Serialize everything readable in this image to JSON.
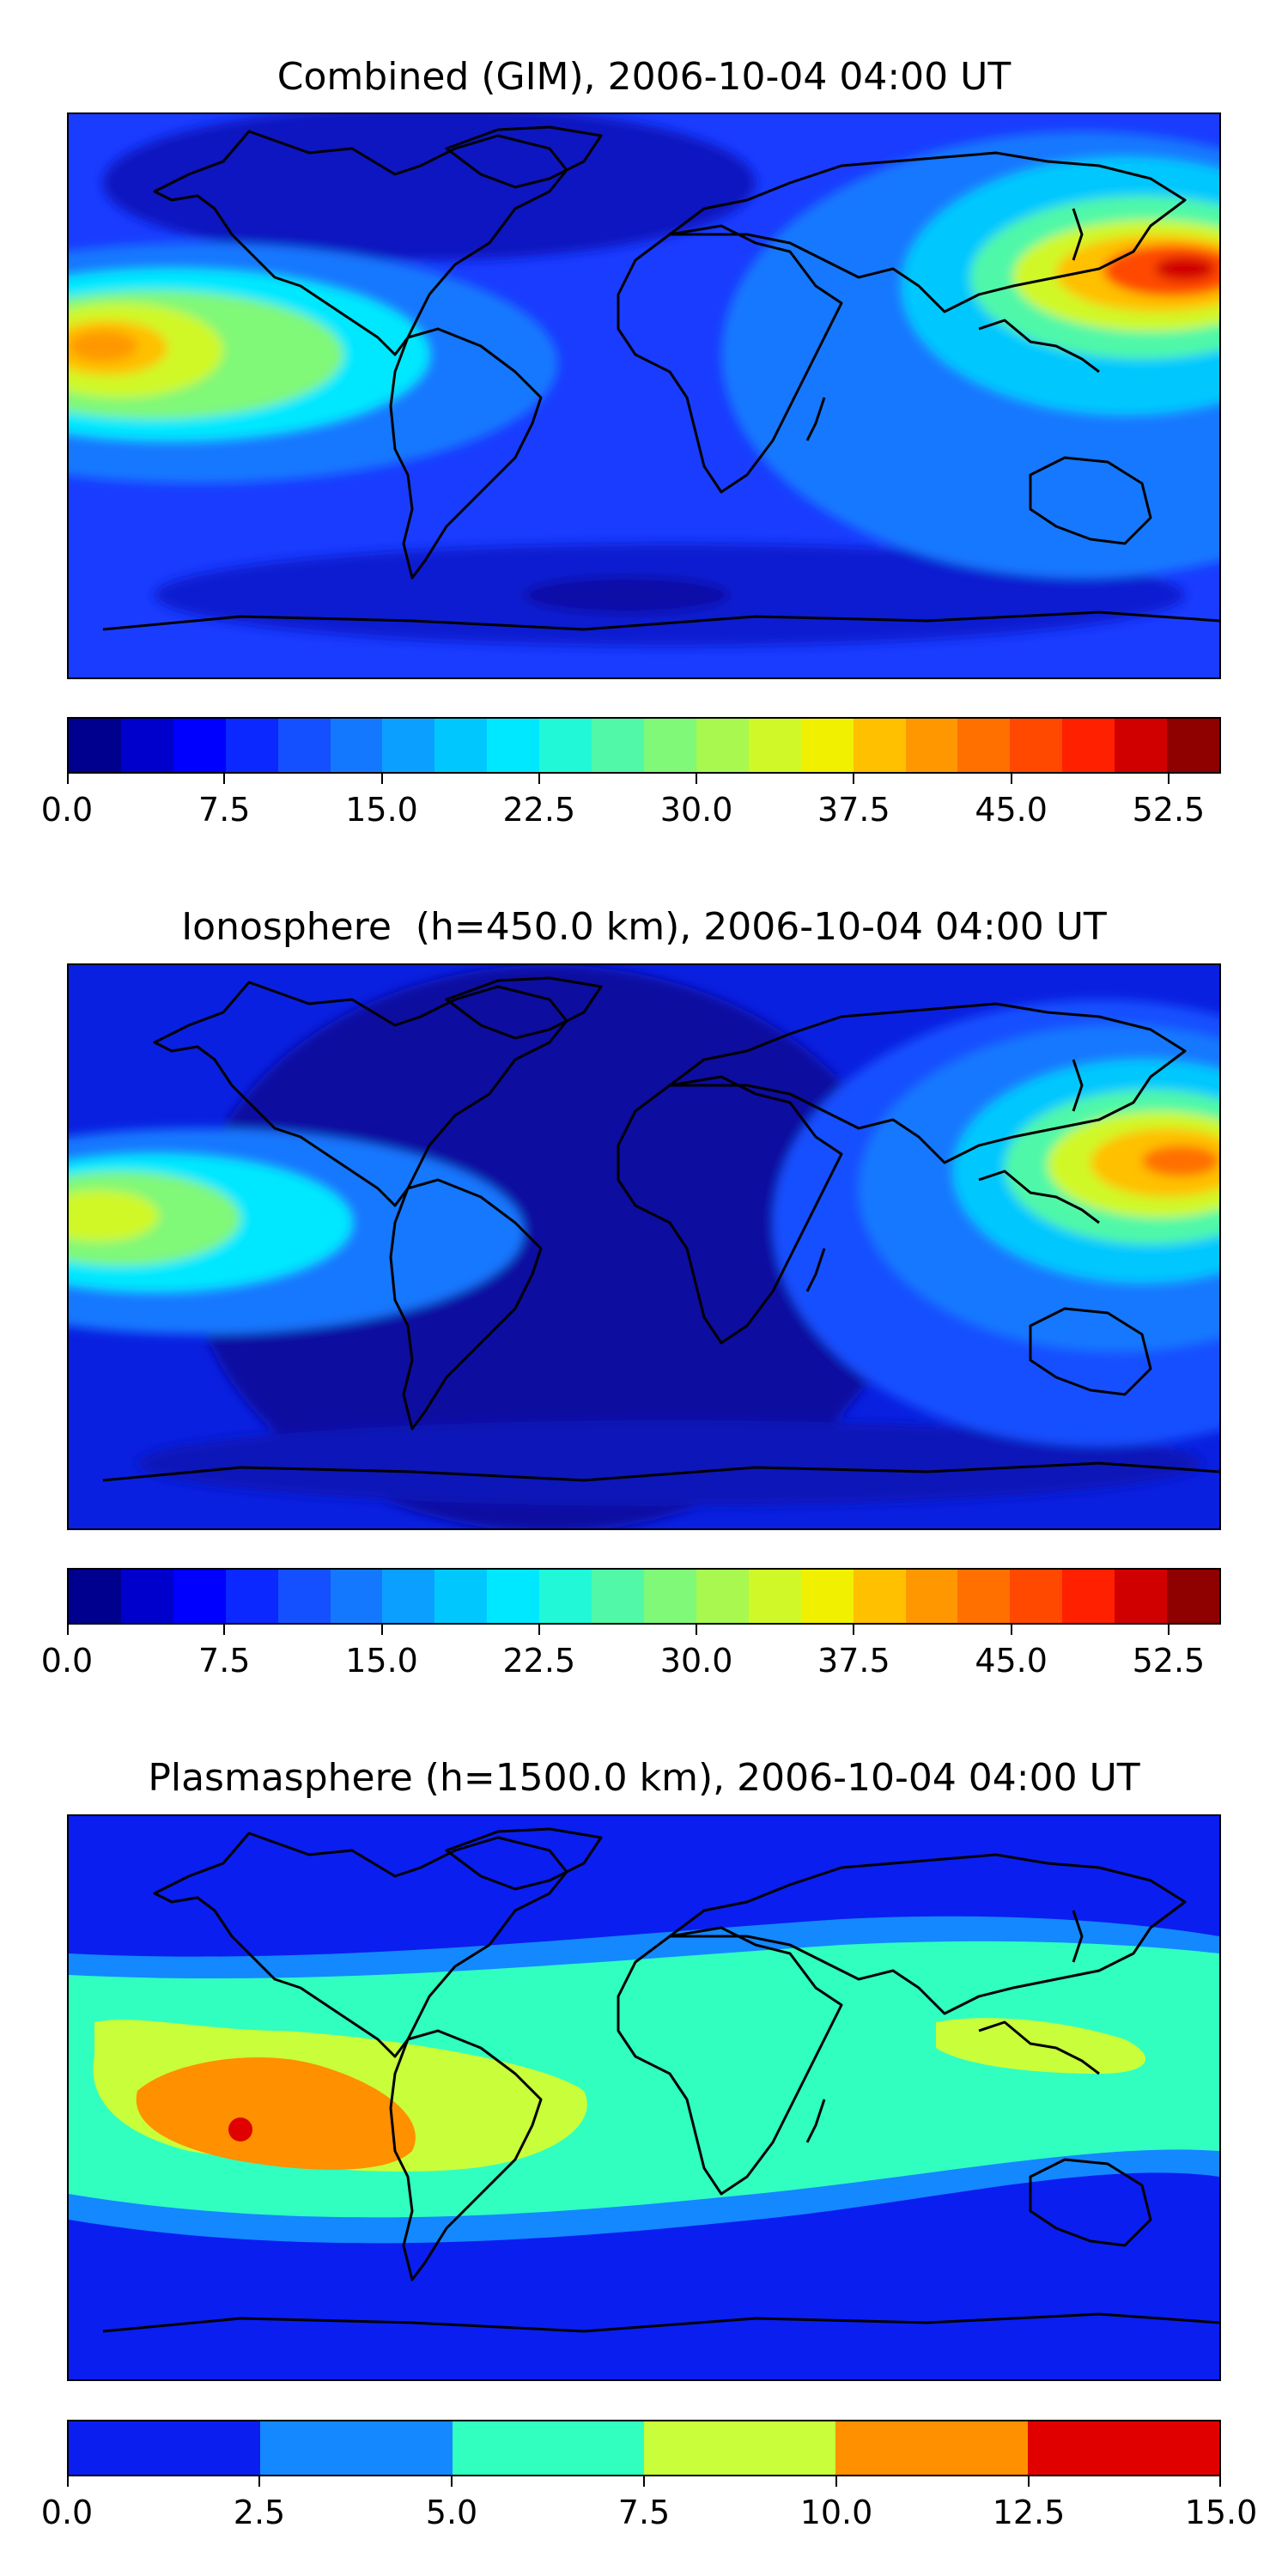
{
  "panels": [
    {
      "title": "Combined (GIM), 2006-10-04 04:00 UT",
      "colorbar": {
        "colors": [
          "#00008f",
          "#0000cc",
          "#0000ff",
          "#0a28ff",
          "#1450ff",
          "#1478ff",
          "#0ba0ff",
          "#00c8ff",
          "#00e8ff",
          "#20f8d8",
          "#50f8a8",
          "#80f878",
          "#a8f850",
          "#d0f828",
          "#f0f000",
          "#ffc000",
          "#ff9800",
          "#ff7000",
          "#ff4800",
          "#ff2000",
          "#d00000",
          "#8f0000"
        ],
        "ticks": [
          "0.0",
          "7.5",
          "15.0",
          "22.5",
          "30.0",
          "37.5",
          "45.0",
          "52.5"
        ],
        "range": [
          0,
          55
        ]
      }
    },
    {
      "title": "Ionosphere  (h=450.0 km), 2006-10-04 04:00 UT",
      "colorbar": {
        "colors": [
          "#00008f",
          "#0000cc",
          "#0000ff",
          "#0a28ff",
          "#1450ff",
          "#1478ff",
          "#0ba0ff",
          "#00c8ff",
          "#00e8ff",
          "#20f8d8",
          "#50f8a8",
          "#80f878",
          "#a8f850",
          "#d0f828",
          "#f0f000",
          "#ffc000",
          "#ff9800",
          "#ff7000",
          "#ff4800",
          "#ff2000",
          "#d00000",
          "#8f0000"
        ],
        "ticks": [
          "0.0",
          "7.5",
          "15.0",
          "22.5",
          "30.0",
          "37.5",
          "45.0",
          "52.5"
        ],
        "range": [
          0,
          55
        ]
      }
    },
    {
      "title": "Plasmasphere (h=1500.0 km), 2006-10-04 04:00 UT",
      "colorbar": {
        "colors": [
          "#0a1ef0",
          "#1488ff",
          "#30ffc0",
          "#c8ff3a",
          "#ff9000",
          "#e00000"
        ],
        "ticks": [
          "0.0",
          "2.5",
          "5.0",
          "7.5",
          "10.0",
          "12.5",
          "15.0"
        ],
        "range": [
          0,
          15
        ]
      }
    }
  ]
}
